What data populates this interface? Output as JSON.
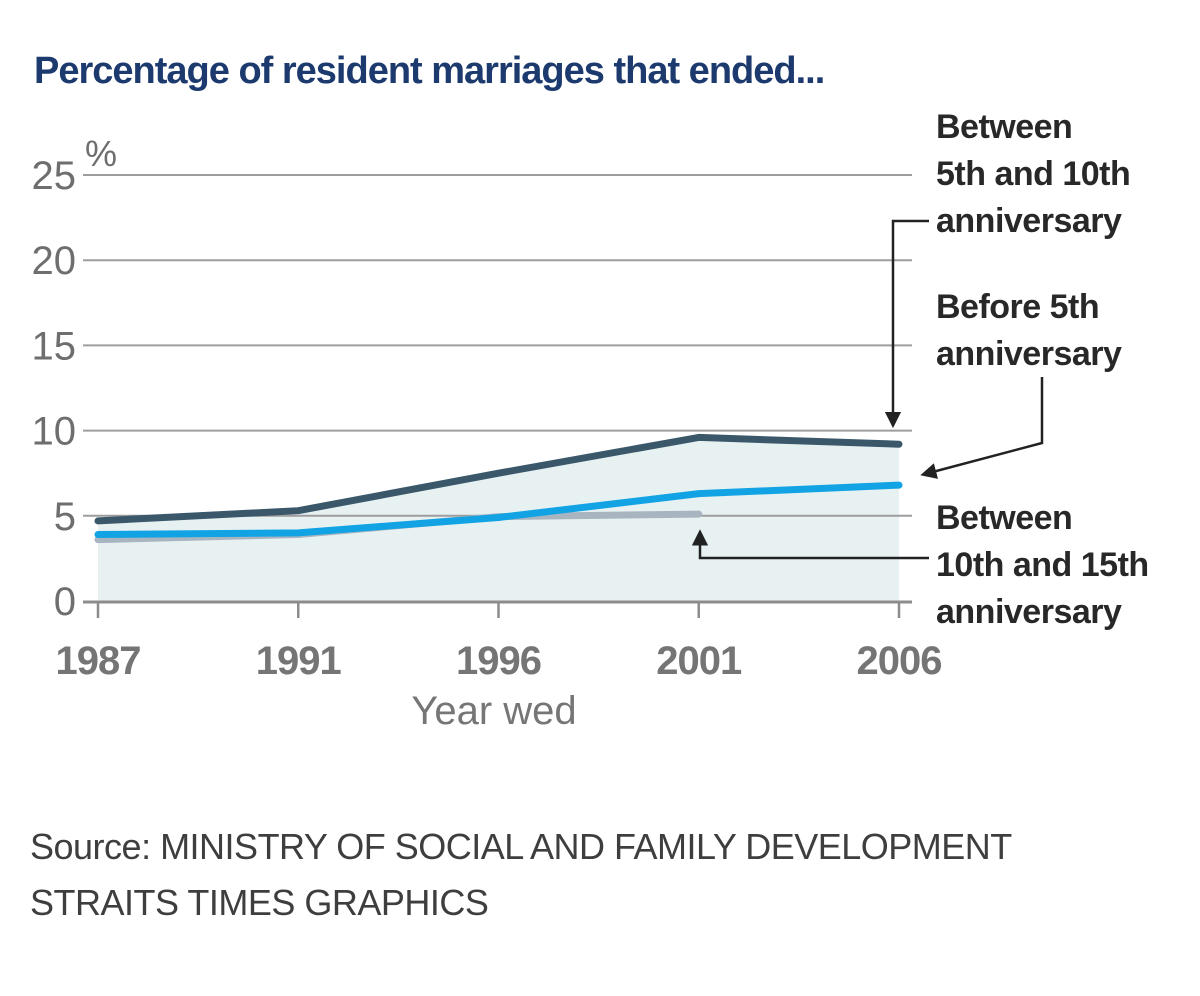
{
  "title": {
    "text": "Percentage of resident marriages that ended..."
  },
  "chart_data": {
    "type": "line",
    "title": "Percentage of resident marriages that ended...",
    "unit_label": "%",
    "xlabel": "Year wed",
    "categories": [
      "1987",
      "1991",
      "1996",
      "2001",
      "2006"
    ],
    "y_ticks": [
      0,
      5,
      10,
      15,
      20,
      25
    ],
    "ylim": [
      0,
      25
    ],
    "grid": true,
    "area_fill_color": "#e8f1f2",
    "legend_position": "right annotations with arrow callouts",
    "series": [
      {
        "name": "Between 5th and 10th anniversary",
        "color": "#3b586b",
        "values": [
          4.7,
          5.3,
          7.5,
          9.6,
          9.2
        ]
      },
      {
        "name": "Before 5th anniversary",
        "color": "#12a3e4",
        "values": [
          3.9,
          4.0,
          4.9,
          6.3,
          6.8
        ]
      },
      {
        "name": "Between 10th and 15th anniversary",
        "color": "#a8b5c0",
        "values": [
          3.6,
          3.9,
          4.95,
          5.1,
          null
        ]
      }
    ],
    "annotations": [
      {
        "label": "Between\n5th and 10th\nanniversary"
      },
      {
        "label": "Before 5th\nanniversary"
      },
      {
        "label": "Between\n10th and 15th\nanniversary"
      }
    ]
  },
  "source": {
    "line1": "Source: MINISTRY OF SOCIAL AND FAMILY DEVELOPMENT",
    "line2": "STRAITS TIMES GRAPHICS"
  }
}
